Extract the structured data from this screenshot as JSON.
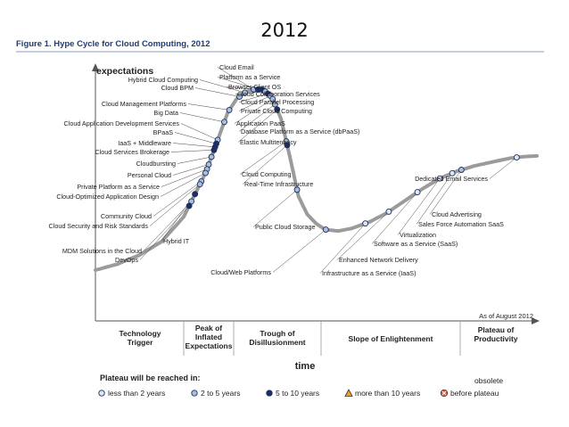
{
  "slide_title": "2012",
  "chart_data": {
    "type": "scatter",
    "title": "Figure 1. Hype Cycle for Cloud Computing, 2012",
    "ylabel": "expectations",
    "xlabel": "time",
    "as_of": "As of August 2012",
    "phases": [
      [
        "Technology",
        "Trigger"
      ],
      [
        "Peak of",
        "Inflated",
        "Expectations"
      ],
      [
        "Trough of",
        "Disillusionment"
      ],
      [
        "Slope of Enlightenment"
      ],
      [
        "Plateau of",
        "Productivity"
      ]
    ],
    "legend": {
      "title": "Plateau will be reached in:",
      "obsolete_label": "obsolete",
      "items": [
        {
          "key": "lt2",
          "label": "less than 2 years",
          "color": "#dde6ef"
        },
        {
          "key": "2to5",
          "label": "2 to 5 years",
          "color": "#a9bfd6"
        },
        {
          "key": "5to10",
          "label": "5 to 10 years",
          "color": "#1c2f63"
        },
        {
          "key": "gt10",
          "label": "more than 10 years",
          "color": "#f2a421"
        },
        {
          "key": "obs",
          "label": "before plateau",
          "color": "#d9553b"
        }
      ]
    },
    "curve_color": "#9b9b9b",
    "points": [
      {
        "label": "Cloud Email",
        "x": 0.3585,
        "class": "2to5"
      },
      {
        "label": "Platform as a Service",
        "x": 0.3685,
        "class": "5to10"
      },
      {
        "label": "Browser Client OS",
        "x": 0.3775,
        "class": "5to10"
      },
      {
        "label": "Cloud Collaboration Services",
        "x": 0.3848,
        "class": "2to5"
      },
      {
        "label": "Cloud Parallel Processing",
        "x": 0.3907,
        "class": "5to10"
      },
      {
        "label": "Private Cloud Computing",
        "x": 0.3961,
        "class": "2to5"
      },
      {
        "label": "Application PaaS",
        "x": 0.4016,
        "class": "2to5"
      },
      {
        "label": "Database Platform as a Service (dbPaaS)",
        "x": 0.4067,
        "class": "2to5"
      },
      {
        "label": "Elastic Multitenancy",
        "x": 0.4116,
        "class": "5to10"
      },
      {
        "label": "Hybrid Cloud Computing",
        "x": 0.3384,
        "class": "2to5"
      },
      {
        "label": "Cloud BPM",
        "x": 0.3263,
        "class": "2to5"
      },
      {
        "label": "Cloud Management Platforms",
        "x": 0.3033,
        "class": "2to5"
      },
      {
        "label": "Big Data",
        "x": 0.2919,
        "class": "2to5"
      },
      {
        "label": "Cloud Application Development Services",
        "x": 0.277,
        "class": "2to5"
      },
      {
        "label": "BPaaS",
        "x": 0.2738,
        "class": "5to10"
      },
      {
        "label": "IaaS + Middleware",
        "x": 0.2711,
        "class": "5to10"
      },
      {
        "label": "Cloud Services Brokerage",
        "x": 0.2686,
        "class": "5to10"
      },
      {
        "label": "Cloudbursting",
        "x": 0.2629,
        "class": "2to5"
      },
      {
        "label": "Personal Cloud",
        "x": 0.2566,
        "class": "2to5"
      },
      {
        "label": "Private Platform as a Service",
        "x": 0.2527,
        "class": "2to5"
      },
      {
        "label": "Cloud-Optimized Application Design",
        "x": 0.2494,
        "class": "2to5"
      },
      {
        "label": "Community Cloud",
        "x": 0.24,
        "class": "2to5"
      },
      {
        "label": "Cloud Security and Risk Standards",
        "x": 0.2367,
        "class": "2to5"
      },
      {
        "label": "Hybrid IT",
        "x": 0.2256,
        "class": "5to10"
      },
      {
        "label": "MDM Solutions in the Cloud",
        "x": 0.2174,
        "class": "2to5"
      },
      {
        "label": "DevOps",
        "x": 0.2124,
        "class": "5to10"
      },
      {
        "label": "Cloud Computing",
        "x": 0.4323,
        "class": "2to5"
      },
      {
        "label": "Real-Time Infrastructure",
        "x": 0.4343,
        "class": "5to10"
      },
      {
        "label": "Public Cloud Storage",
        "x": 0.4567,
        "class": "2to5"
      },
      {
        "label": "Cloud/Web Platforms",
        "x": 0.5219,
        "class": "2to5"
      },
      {
        "label": "Infrastructure as a Service (IaaS)",
        "x": 0.6114,
        "class": "lt2"
      },
      {
        "label": "Enhanced Network Delivery",
        "x": 0.6645,
        "class": "lt2"
      },
      {
        "label": "Software as a Service (SaaS)",
        "x": 0.7294,
        "class": "lt2"
      },
      {
        "label": "Virtualization",
        "x": 0.7802,
        "class": "lt2"
      },
      {
        "label": "Sales Force Automation SaaS",
        "x": 0.8083,
        "class": "lt2"
      },
      {
        "label": "Cloud Advertising",
        "x": 0.8289,
        "class": "2to5"
      },
      {
        "label": "Dedicated Email Services",
        "x": 0.9542,
        "class": "lt2"
      }
    ]
  }
}
